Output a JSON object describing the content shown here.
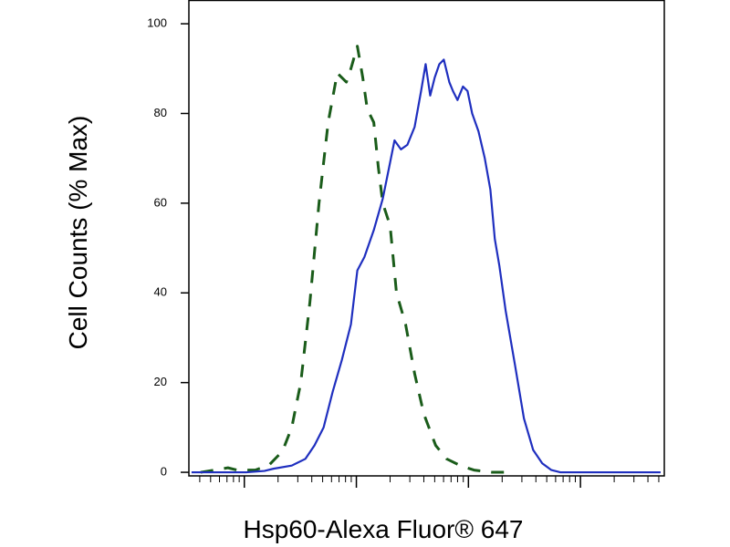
{
  "chart_data": {
    "type": "line",
    "x_label": "Hsp60-Alexa Fluor® 647",
    "y_label": "Cell Counts (% Max)",
    "xscale": "log",
    "xlim": [
      0.32,
      5600
    ],
    "xticks": [
      1,
      10,
      100,
      1000
    ],
    "x_minor_ticks": [
      0.4,
      0.5,
      0.6,
      0.7,
      0.8,
      0.9,
      2,
      3,
      4,
      5,
      6,
      7,
      8,
      9,
      20,
      30,
      40,
      50,
      60,
      70,
      80,
      90,
      200,
      300,
      400,
      500,
      600,
      700,
      800,
      900,
      2000,
      3000,
      4000,
      5000
    ],
    "ylim": [
      -0.8,
      105.3
    ],
    "yticks": [
      0,
      20,
      40,
      60,
      80,
      100
    ],
    "series": [
      {
        "color": "#1a5c1a",
        "line_style": "dashed",
        "x": [
          0.407,
          0.714,
          0.861,
          1.25,
          1.66,
          2.19,
          2.65,
          3.19,
          3.85,
          4.64,
          5.6,
          6.75,
          8.14,
          8.94,
          10.2,
          11.4,
          12.5,
          14.3,
          15.7,
          17.2,
          20.0,
          22.8,
          27.5,
          33.1,
          40.0,
          51.0,
          63.8,
          84.6,
          112,
          163,
          237
        ],
        "values": [
          0,
          1,
          0.5,
          0.5,
          1.6,
          4.7,
          10,
          20,
          38,
          60,
          78,
          89,
          87,
          90,
          95,
          88,
          81,
          78,
          68,
          60,
          55,
          40,
          33,
          22,
          13,
          6,
          3,
          1.5,
          0.5,
          0,
          0
        ]
      },
      {
        "color": "#1f2fbf",
        "line_style": "solid",
        "x": [
          0.338,
          1.04,
          1.51,
          1.82,
          2.65,
          3.51,
          4.23,
          5.1,
          6.15,
          7.41,
          8.94,
          10.2,
          11.8,
          14.3,
          17.2,
          19.6,
          21.9,
          25.0,
          28.5,
          33.1,
          37.8,
          41.5,
          45.6,
          50.0,
          55.0,
          60.3,
          67.5,
          72.8,
          79.9,
          89.4,
          98.2,
          108,
          123,
          140,
          157,
          172,
          189,
          215,
          260,
          313,
          378,
          456,
          550,
          662,
          1060,
          5190
        ],
        "values": [
          0,
          0,
          0.3,
          0.8,
          1.5,
          3,
          6,
          10,
          18,
          25,
          33,
          45,
          48,
          54,
          61,
          68,
          74,
          72,
          73,
          77,
          85,
          91,
          84,
          88,
          91,
          92,
          87,
          85,
          83,
          86,
          85,
          80,
          76,
          70,
          63,
          52,
          46,
          36,
          24,
          12,
          5,
          2,
          0.5,
          0,
          0,
          0
        ]
      }
    ]
  }
}
